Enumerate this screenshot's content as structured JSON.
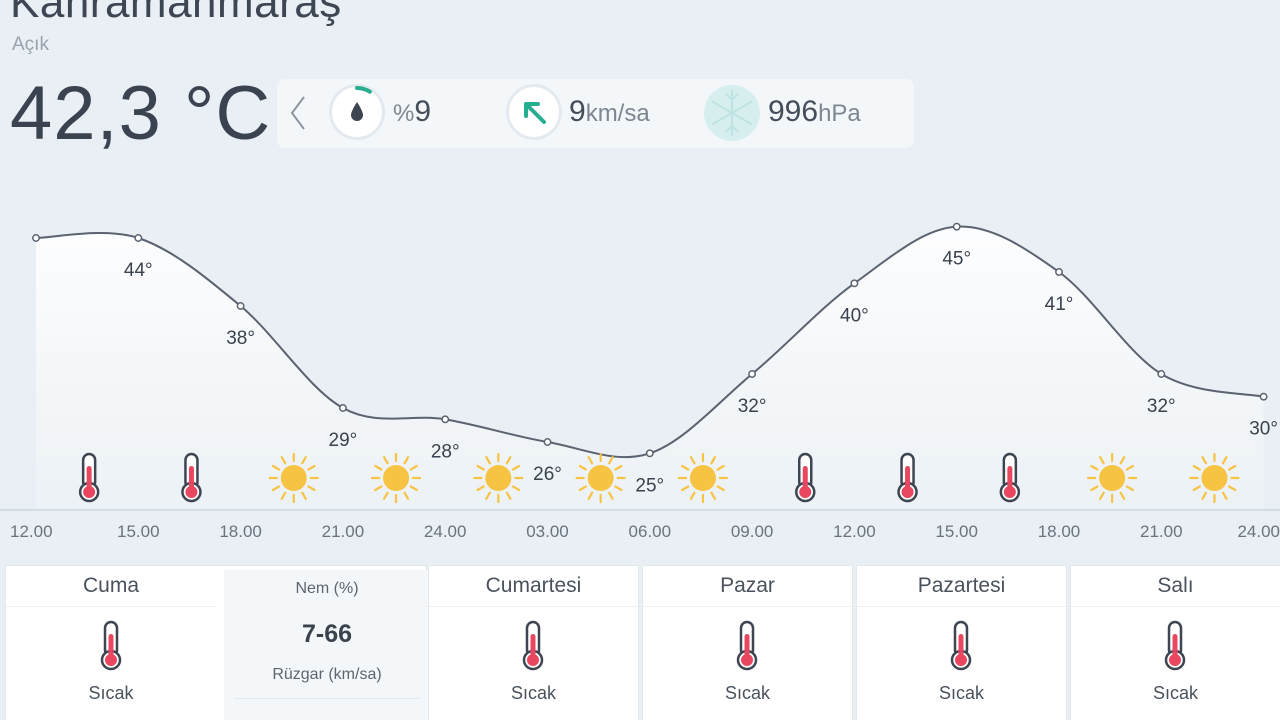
{
  "location": {
    "city": "Kahramanmaraş",
    "condition": "Açık"
  },
  "current": {
    "temperature": "42,3 °C"
  },
  "stats": {
    "humidity": {
      "prefix": "%",
      "value": "9",
      "fraction": 0.09,
      "icon": "drop-icon"
    },
    "wind": {
      "value": "9",
      "unit": "km/sa",
      "icon": "wind-arrow-icon"
    },
    "pressure": {
      "value": "996",
      "unit": "hPa",
      "icon": "snowflake-icon"
    }
  },
  "chart_data": {
    "type": "line",
    "x": [
      "12.00",
      "15.00",
      "18.00",
      "21.00",
      "24.00",
      "03.00",
      "06.00",
      "09.00",
      "12.00",
      "15.00",
      "18.00",
      "21.00",
      "24.00"
    ],
    "series": [
      {
        "values": [
          44,
          44,
          38,
          29,
          28,
          26,
          25,
          32,
          40,
          45,
          41,
          32,
          30
        ]
      }
    ],
    "point_labels": [
      "",
      "44°",
      "38°",
      "29°",
      "28°",
      "26°",
      "25°",
      "32°",
      "40°",
      "45°",
      "41°",
      "32°",
      "30°"
    ],
    "ylim": [
      20,
      50
    ],
    "grid": false,
    "hour_icons": [
      "thermometer-icon",
      "thermometer-icon",
      "sun-icon",
      "sun-icon",
      "sun-icon",
      "sun-icon",
      "sun-icon",
      "thermometer-icon",
      "thermometer-icon",
      "thermometer-icon",
      "sun-icon",
      "sun-icon"
    ]
  },
  "daily": [
    {
      "day": "Cuma",
      "status": "Sıcak",
      "icon": "thermometer-icon"
    },
    {
      "day": "Cumartesi",
      "status": "Sıcak",
      "icon": "thermometer-icon"
    },
    {
      "day": "Pazar",
      "status": "Sıcak",
      "icon": "thermometer-icon"
    },
    {
      "day": "Pazartesi",
      "status": "Sıcak",
      "icon": "thermometer-icon"
    },
    {
      "day": "Salı",
      "status": "Sıcak",
      "icon": "thermometer-icon"
    }
  ],
  "detail": {
    "humidity_label": "Nem (%)",
    "humidity_range": "7-66",
    "wind_label": "Rüzgar (km/sa)"
  },
  "colors": {
    "line": "#5b6270",
    "accent_teal": "#27ad8f",
    "thermo_red": "#e8475f",
    "sun": "#f6c343"
  }
}
